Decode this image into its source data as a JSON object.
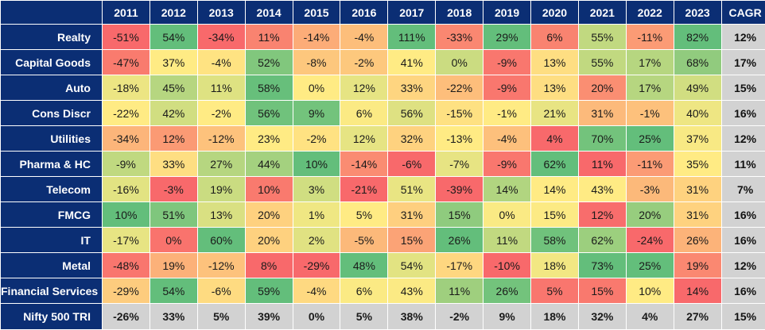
{
  "chart_data": {
    "type": "heatmap",
    "corner_label": "",
    "years": [
      "2011",
      "2012",
      "2013",
      "2014",
      "2015",
      "2016",
      "2017",
      "2018",
      "2019",
      "2020",
      "2021",
      "2022",
      "2023"
    ],
    "cagr_label": "CAGR",
    "rows": [
      {
        "sector": "Realty",
        "values": [
          "-51%",
          "54%",
          "-34%",
          "11%",
          "-14%",
          "-4%",
          "111%",
          "-33%",
          "29%",
          "6%",
          "55%",
          "-11%",
          "82%"
        ],
        "cagr": "12%"
      },
      {
        "sector": "Capital Goods",
        "values": [
          "-47%",
          "37%",
          "-4%",
          "52%",
          "-8%",
          "-2%",
          "41%",
          "0%",
          "-9%",
          "13%",
          "55%",
          "17%",
          "68%"
        ],
        "cagr": "17%"
      },
      {
        "sector": "Auto",
        "values": [
          "-18%",
          "45%",
          "11%",
          "58%",
          "0%",
          "12%",
          "33%",
          "-22%",
          "-9%",
          "13%",
          "20%",
          "17%",
          "49%"
        ],
        "cagr": "15%"
      },
      {
        "sector": "Cons Discr",
        "values": [
          "-22%",
          "42%",
          "-2%",
          "56%",
          "9%",
          "6%",
          "56%",
          "-15%",
          "-1%",
          "21%",
          "31%",
          "-1%",
          "40%"
        ],
        "cagr": "16%"
      },
      {
        "sector": "Utilities",
        "values": [
          "-34%",
          "12%",
          "-12%",
          "23%",
          "-2%",
          "12%",
          "32%",
          "-13%",
          "-4%",
          "4%",
          "70%",
          "25%",
          "37%"
        ],
        "cagr": "12%"
      },
      {
        "sector": "Pharma & HC",
        "values": [
          "-9%",
          "33%",
          "27%",
          "44%",
          "10%",
          "-14%",
          "-6%",
          "-7%",
          "-9%",
          "62%",
          "11%",
          "-11%",
          "35%"
        ],
        "cagr": "11%"
      },
      {
        "sector": "Telecom",
        "values": [
          "-16%",
          "-3%",
          "19%",
          "10%",
          "3%",
          "-21%",
          "51%",
          "-39%",
          "14%",
          "14%",
          "43%",
          "-3%",
          "31%"
        ],
        "cagr": "7%"
      },
      {
        "sector": "FMCG",
        "values": [
          "10%",
          "51%",
          "13%",
          "20%",
          "1%",
          "5%",
          "31%",
          "15%",
          "0%",
          "15%",
          "12%",
          "20%",
          "31%"
        ],
        "cagr": "16%"
      },
      {
        "sector": "IT",
        "values": [
          "-17%",
          "0%",
          "60%",
          "20%",
          "2%",
          "-5%",
          "15%",
          "26%",
          "11%",
          "58%",
          "62%",
          "-24%",
          "26%"
        ],
        "cagr": "16%"
      },
      {
        "sector": "Metal",
        "values": [
          "-48%",
          "19%",
          "-12%",
          "8%",
          "-29%",
          "48%",
          "54%",
          "-17%",
          "-10%",
          "18%",
          "73%",
          "25%",
          "19%"
        ],
        "cagr": "12%"
      },
      {
        "sector": "Financial Services",
        "values": [
          "-29%",
          "54%",
          "-6%",
          "59%",
          "-4%",
          "6%",
          "43%",
          "11%",
          "26%",
          "5%",
          "15%",
          "10%",
          "14%"
        ],
        "cagr": "16%"
      },
      {
        "sector": "Nifty 500 TRI",
        "values": [
          "-26%",
          "33%",
          "5%",
          "39%",
          "0%",
          "5%",
          "38%",
          "-2%",
          "9%",
          "18%",
          "32%",
          "4%",
          "27%"
        ],
        "cagr": "15%",
        "is_total": true
      }
    ],
    "colors": {
      "header_bg": "#0b2e74",
      "header_text": "#ffffff",
      "scale_low": "#f8696b",
      "scale_mid": "#ffeb84",
      "scale_high": "#63be7b",
      "total_bg": "#d2d2d2"
    }
  }
}
